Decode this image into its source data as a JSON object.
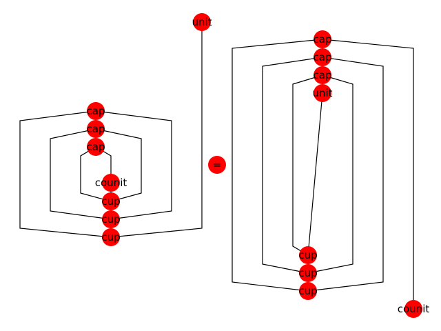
{
  "colors": {
    "node": "#ff0000",
    "wire": "#000000",
    "background": "#ffffff"
  },
  "diagram": {
    "left": {
      "unit": "unit",
      "caps": [
        "cap",
        "cap",
        "cap"
      ],
      "counit": "counit",
      "cups": [
        "cup",
        "cup",
        "cup"
      ]
    },
    "equals": "=",
    "right": {
      "caps": [
        "cap",
        "cap",
        "cap"
      ],
      "unit": "unit",
      "cups": [
        "cup",
        "cup",
        "cup"
      ],
      "counit": "counit"
    }
  }
}
